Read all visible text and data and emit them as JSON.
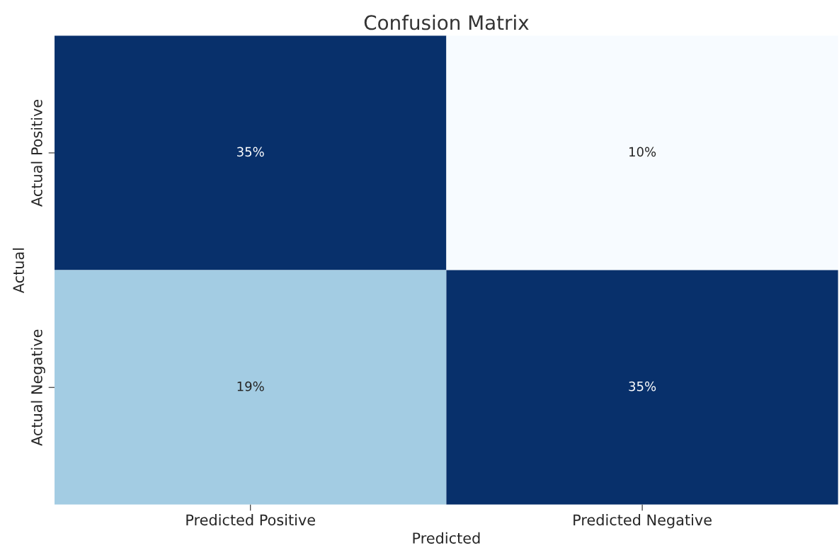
{
  "chart_data": {
    "type": "heatmap",
    "title": "Confusion Matrix",
    "xlabel": "Predicted",
    "ylabel": "Actual",
    "categories": [
      "Predicted Positive",
      "Predicted Negative"
    ],
    "y_categories": [
      "Actual Positive",
      "Actual Negative"
    ],
    "cells": [
      [
        35,
        10
      ],
      [
        19,
        35
      ]
    ],
    "cell_labels": [
      [
        "35%",
        "10%"
      ],
      [
        "19%",
        "35%"
      ]
    ]
  }
}
